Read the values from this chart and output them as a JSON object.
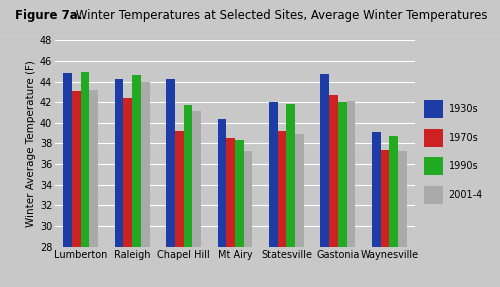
{
  "title_bold": "Figure 7a.",
  "title_regular": " Winter Temperatures at Selected Sites, Average Winter Temperatures",
  "categories": [
    "Lumberton",
    "Raleigh",
    "Chapel Hill",
    "Mt Airy",
    "Statesville",
    "Gastonia",
    "Waynesville"
  ],
  "series": {
    "1930s": [
      44.8,
      44.2,
      44.2,
      40.4,
      42.0,
      44.7,
      39.1
    ],
    "1970s": [
      43.1,
      42.4,
      39.2,
      38.5,
      39.2,
      42.7,
      37.4
    ],
    "1990s": [
      44.9,
      44.6,
      41.7,
      38.3,
      41.8,
      42.0,
      38.7
    ],
    "2001-4": [
      43.2,
      44.0,
      41.1,
      37.3,
      38.9,
      42.1,
      37.3
    ]
  },
  "colors": {
    "1930s": "#1E3CA6",
    "1970s": "#CC2222",
    "1990s": "#22AA22",
    "2001-4": "#AAAAAA"
  },
  "ylabel": "Winter Average Temperature (F)",
  "ylim": [
    28,
    48
  ],
  "yticks": [
    28,
    30,
    32,
    34,
    36,
    38,
    40,
    42,
    44,
    46,
    48
  ],
  "legend_labels": [
    "1930s",
    "1970s",
    "1990s",
    "2001-4"
  ],
  "outer_bg_color": "#C8C8C8",
  "title_bg_color": "#E8E8E8",
  "plot_bg_color": "#C8C8C8",
  "grid_color": "#FFFFFF",
  "title_fontsize": 8.5,
  "axis_label_fontsize": 7.5,
  "tick_fontsize": 7,
  "legend_fontsize": 7,
  "bar_width": 0.17
}
